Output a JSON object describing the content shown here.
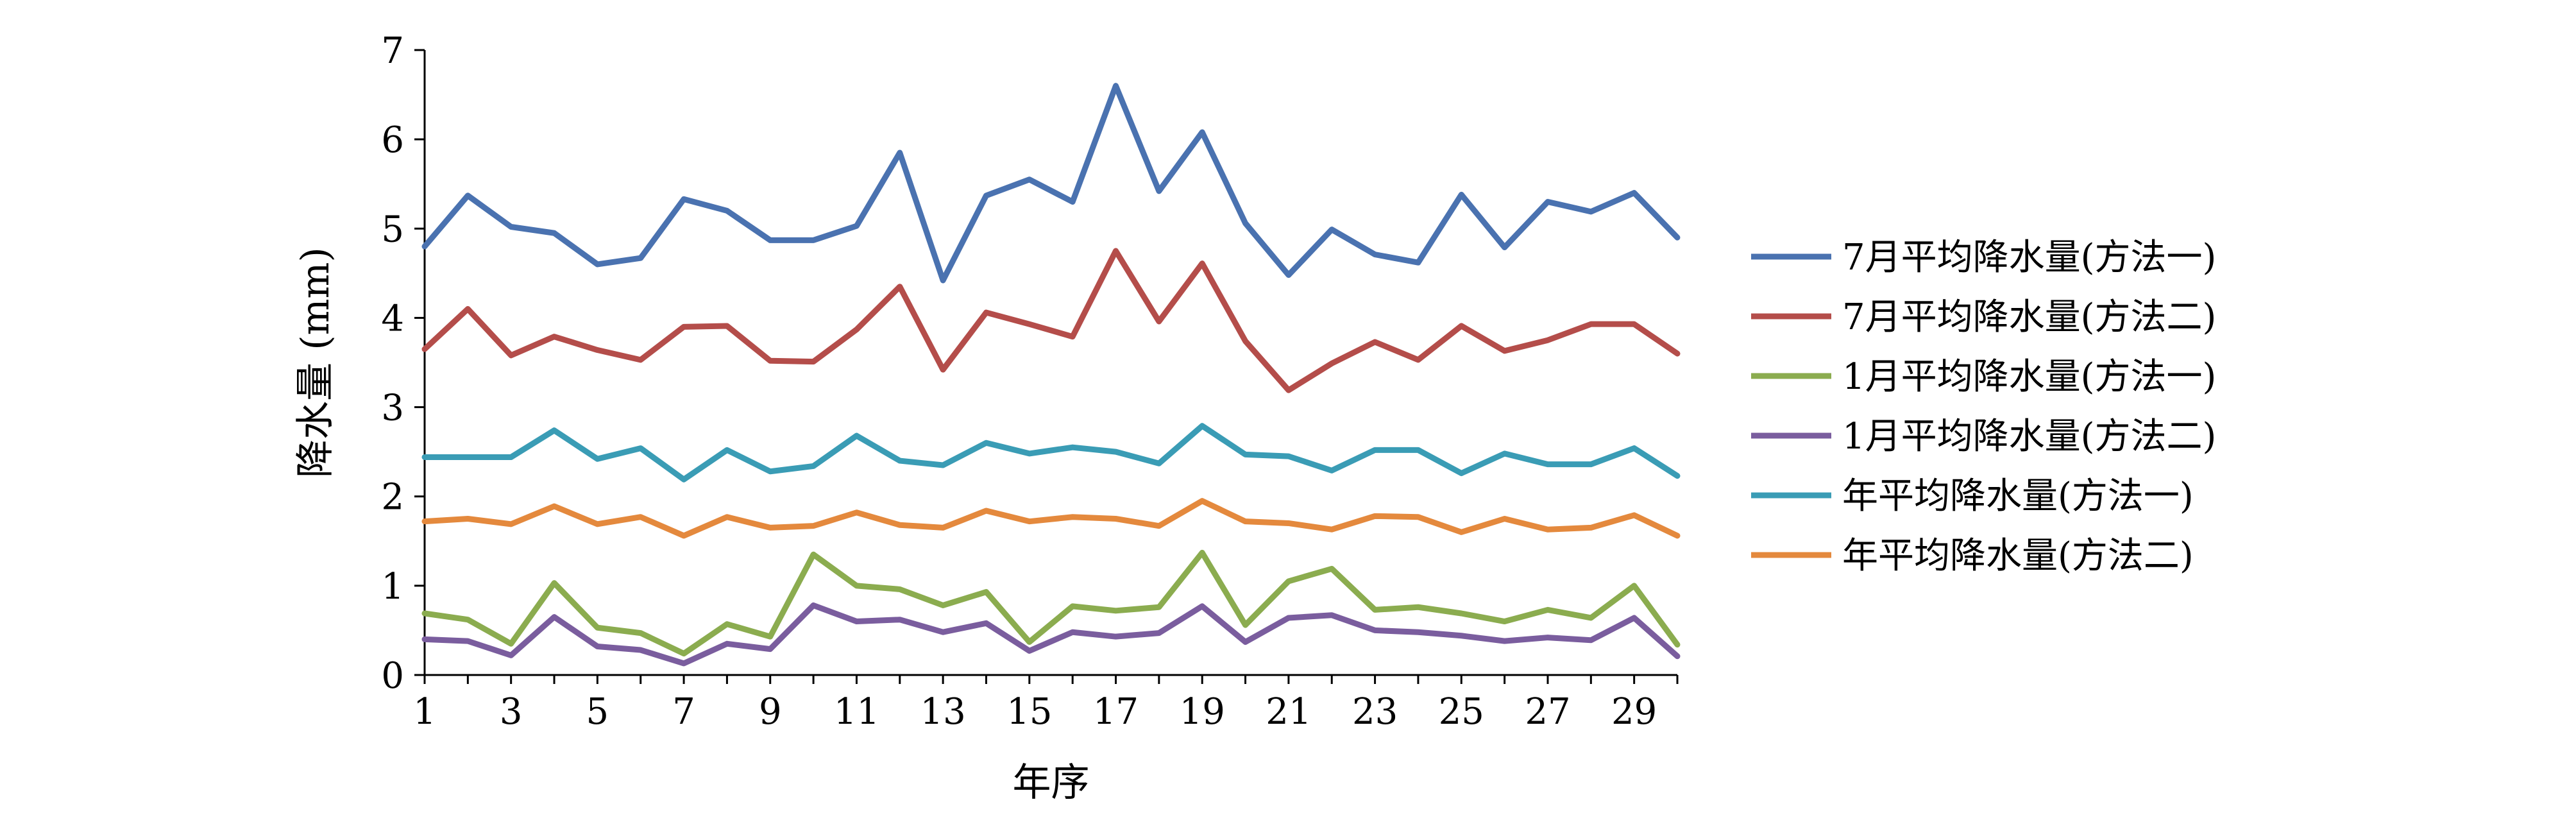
{
  "chart_data": {
    "type": "line",
    "xlabel": "年序",
    "ylabel": "降水量 (mm)",
    "xlim": [
      1,
      30
    ],
    "ylim": [
      0,
      7
    ],
    "x": [
      1,
      2,
      3,
      4,
      5,
      6,
      7,
      8,
      9,
      10,
      11,
      12,
      13,
      14,
      15,
      16,
      17,
      18,
      19,
      20,
      21,
      22,
      23,
      24,
      25,
      26,
      27,
      28,
      29,
      30
    ],
    "x_tick_labels": [
      "1",
      "3",
      "5",
      "7",
      "9",
      "11",
      "13",
      "15",
      "17",
      "19",
      "21",
      "23",
      "25",
      "27",
      "29"
    ],
    "y_tick_labels": [
      "0",
      "1",
      "2",
      "3",
      "4",
      "5",
      "6",
      "7"
    ],
    "grid": false,
    "legend_position": "right",
    "series": [
      {
        "name": "7月平均降水量(方法一)",
        "color": "#4a72b0",
        "values": [
          4.8,
          5.37,
          5.02,
          4.95,
          4.6,
          4.67,
          5.33,
          5.2,
          4.87,
          4.87,
          5.03,
          5.85,
          4.42,
          5.37,
          5.55,
          5.3,
          6.6,
          5.42,
          6.08,
          5.06,
          4.48,
          4.99,
          4.71,
          4.62,
          5.38,
          4.79,
          5.3,
          5.19,
          5.4,
          4.9
        ]
      },
      {
        "name": "7月平均降水量(方法二)",
        "color": "#b44d4a",
        "values": [
          3.65,
          4.1,
          3.58,
          3.79,
          3.64,
          3.53,
          3.9,
          3.91,
          3.52,
          3.51,
          3.87,
          4.35,
          3.42,
          4.06,
          3.93,
          3.79,
          4.75,
          3.96,
          4.61,
          3.74,
          3.19,
          3.49,
          3.73,
          3.53,
          3.91,
          3.63,
          3.75,
          3.93,
          3.93,
          3.6
        ]
      },
      {
        "name": "1月平均降水量(方法一)",
        "color": "#8bac4f",
        "values": [
          0.69,
          0.62,
          0.35,
          1.03,
          0.53,
          0.47,
          0.24,
          0.57,
          0.43,
          1.35,
          1.0,
          0.96,
          0.78,
          0.93,
          0.37,
          0.77,
          0.72,
          0.76,
          1.37,
          0.56,
          1.05,
          1.19,
          0.73,
          0.76,
          0.69,
          0.6,
          0.73,
          0.64,
          1.0,
          0.34
        ]
      },
      {
        "name": "1月平均降水量(方法二)",
        "color": "#7a5d9e",
        "values": [
          0.4,
          0.38,
          0.22,
          0.65,
          0.32,
          0.28,
          0.13,
          0.35,
          0.29,
          0.78,
          0.6,
          0.62,
          0.48,
          0.58,
          0.27,
          0.48,
          0.43,
          0.47,
          0.77,
          0.37,
          0.64,
          0.67,
          0.5,
          0.48,
          0.44,
          0.38,
          0.42,
          0.39,
          0.64,
          0.21
        ]
      },
      {
        "name": "年平均降水量(方法一)",
        "color": "#3a9cb5",
        "values": [
          2.44,
          2.44,
          2.44,
          2.74,
          2.42,
          2.54,
          2.19,
          2.52,
          2.28,
          2.34,
          2.68,
          2.4,
          2.35,
          2.6,
          2.48,
          2.55,
          2.5,
          2.37,
          2.79,
          2.47,
          2.45,
          2.29,
          2.52,
          2.52,
          2.26,
          2.48,
          2.36,
          2.36,
          2.54,
          2.23
        ]
      },
      {
        "name": "年平均降水量(方法二)",
        "color": "#e4893d",
        "values": [
          1.72,
          1.75,
          1.69,
          1.89,
          1.69,
          1.77,
          1.56,
          1.77,
          1.65,
          1.67,
          1.82,
          1.68,
          1.65,
          1.84,
          1.72,
          1.77,
          1.75,
          1.67,
          1.95,
          1.72,
          1.7,
          1.63,
          1.78,
          1.77,
          1.6,
          1.75,
          1.63,
          1.65,
          1.79,
          1.56
        ]
      }
    ]
  }
}
